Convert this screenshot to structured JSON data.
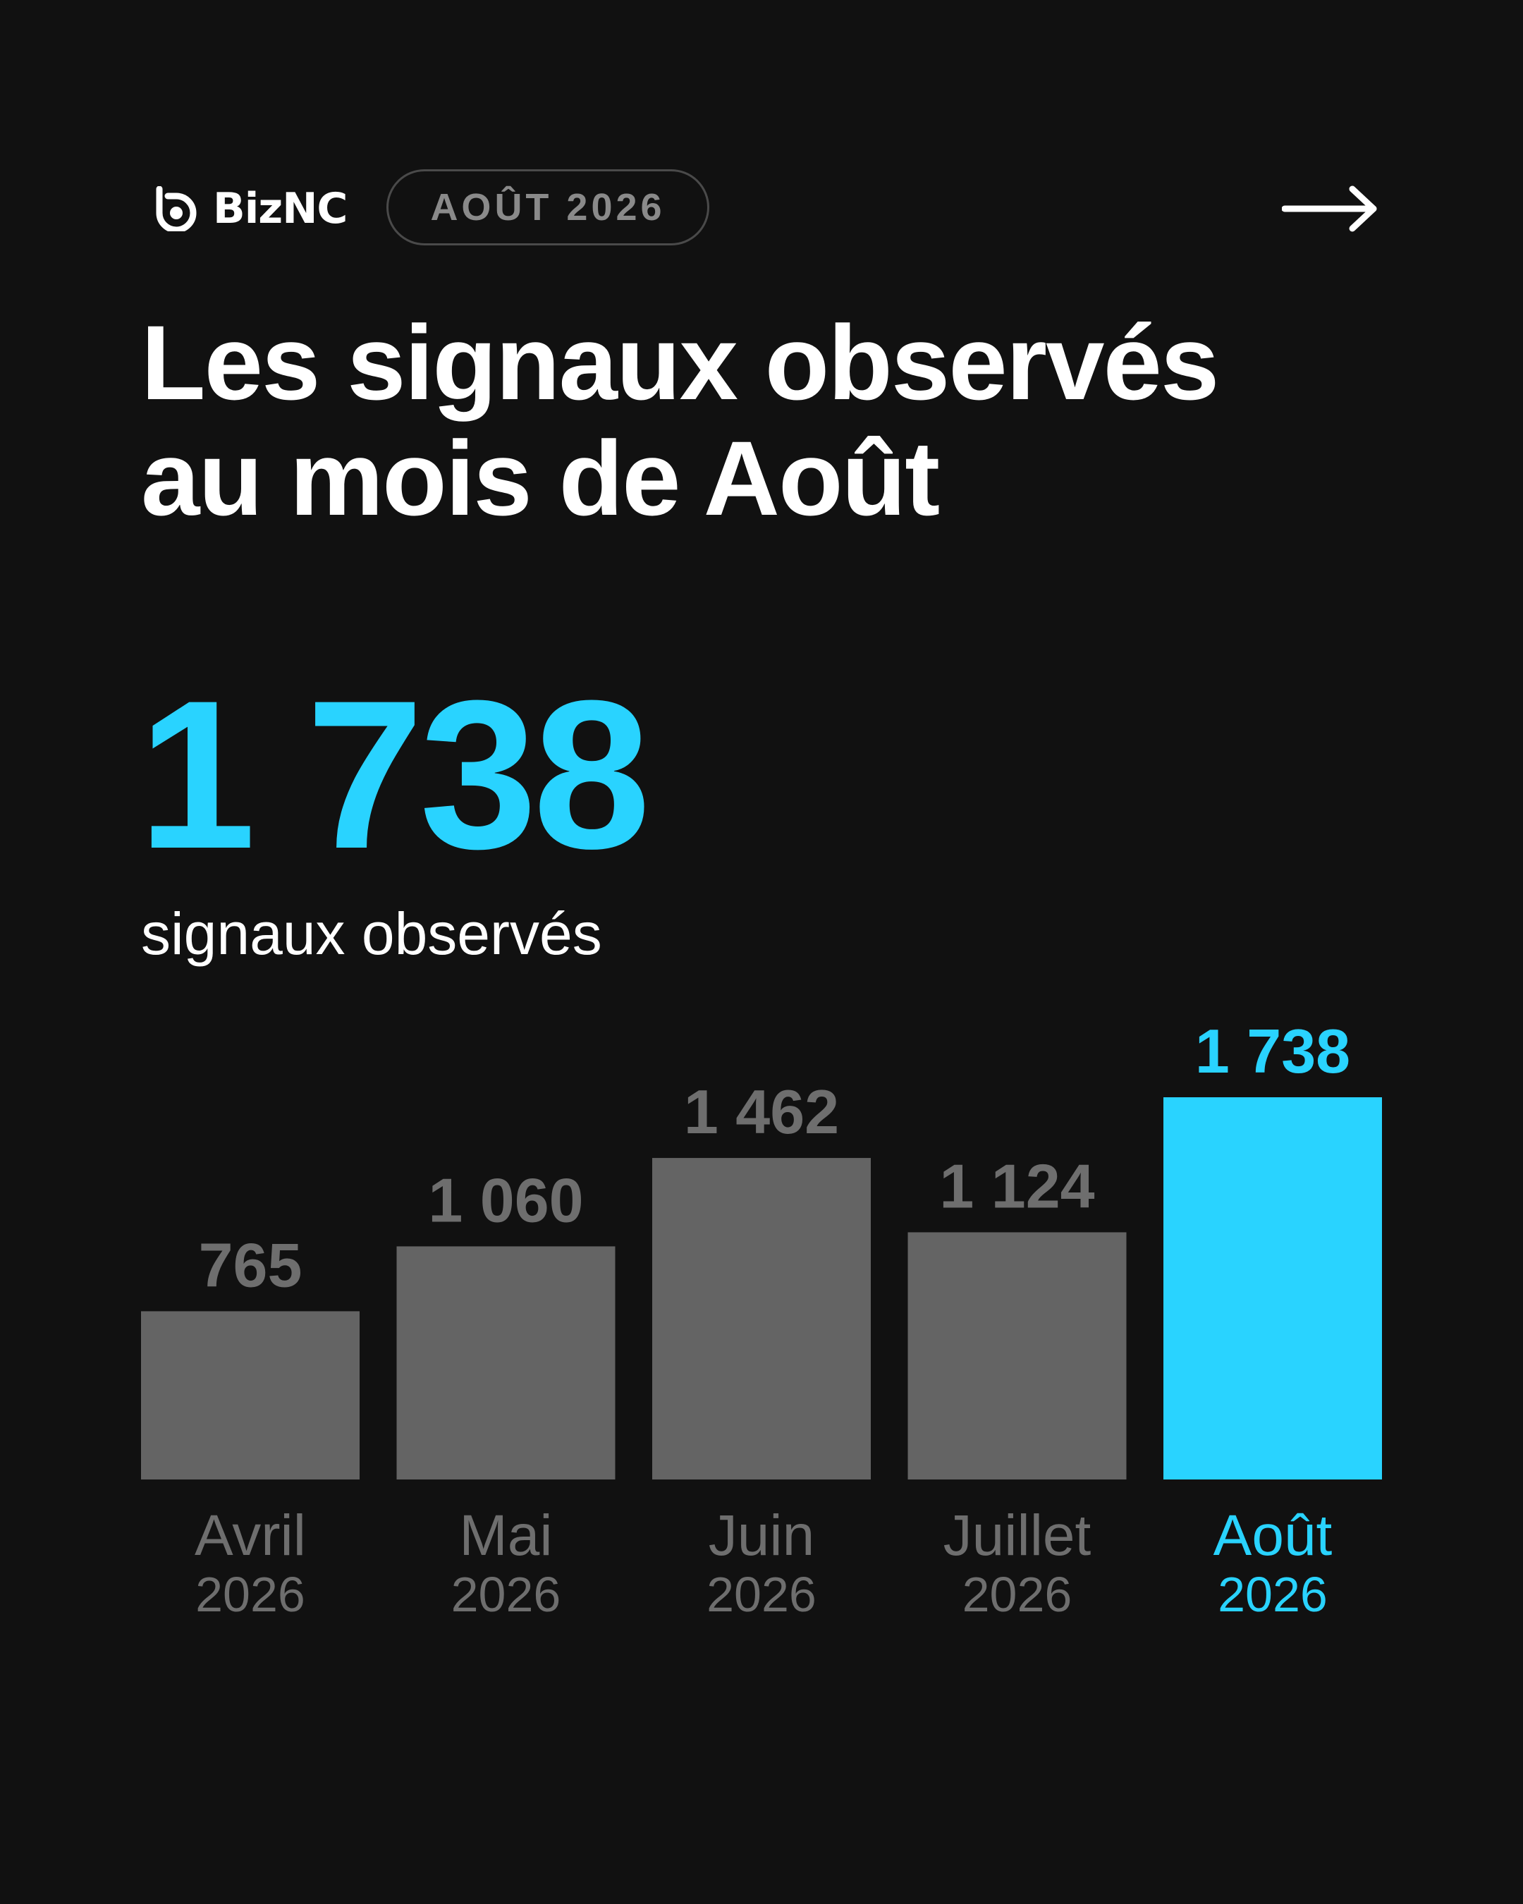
{
  "header": {
    "brand": "BizNC",
    "brand_icon": "biznc-logo-icon",
    "date_badge": "AOÛT 2026",
    "next_icon": "arrow-right-icon"
  },
  "title": {
    "line1": "Les signaux observés",
    "line2": "au mois de Août"
  },
  "headline": {
    "value": "1 738",
    "caption": "signaux observés"
  },
  "colors": {
    "background": "#111111",
    "accent": "#29d3ff",
    "muted_bar": "#646464",
    "muted_text": "#6e6e6e"
  },
  "chart_data": {
    "type": "bar",
    "categories": [
      {
        "month": "Avril",
        "year": "2026"
      },
      {
        "month": "Mai",
        "year": "2026"
      },
      {
        "month": "Juin",
        "year": "2026"
      },
      {
        "month": "Juillet",
        "year": "2026"
      },
      {
        "month": "Août",
        "year": "2026"
      }
    ],
    "values": [
      765,
      1060,
      1462,
      1124,
      1738
    ],
    "value_labels": [
      "765",
      "1 060",
      "1 462",
      "1 124",
      "1 738"
    ],
    "highlight_index": 4,
    "grid": false,
    "legend": "none"
  }
}
